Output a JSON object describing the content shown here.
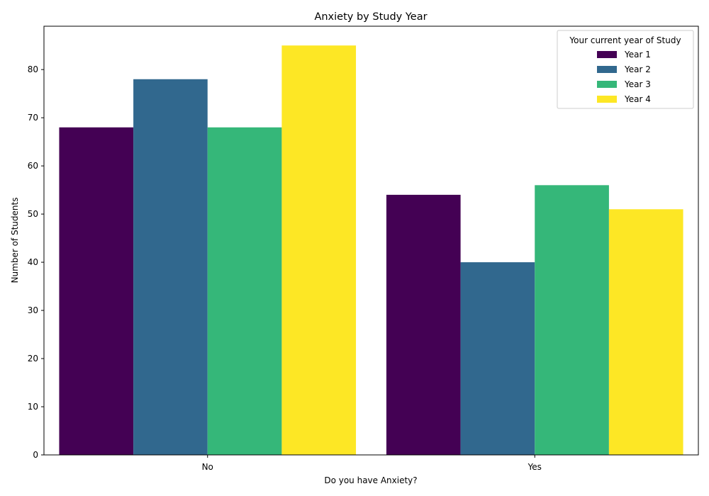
{
  "chart_data": {
    "type": "bar",
    "title": "Anxiety by Study Year",
    "xlabel": "Do you have Anxiety?",
    "ylabel": "Number of Students",
    "categories": [
      "No",
      "Yes"
    ],
    "ylim": [
      0,
      89
    ],
    "yticks": [
      0,
      10,
      20,
      30,
      40,
      50,
      60,
      70,
      80
    ],
    "grid": false,
    "legend": {
      "title": "Your current year of Study",
      "placement": "top-right"
    },
    "series": [
      {
        "name": "Year 1",
        "color": "#440154",
        "values": [
          68,
          54
        ]
      },
      {
        "name": "Year 2",
        "color": "#31688e",
        "values": [
          78,
          40
        ]
      },
      {
        "name": "Year 3",
        "color": "#35b779",
        "values": [
          68,
          56
        ]
      },
      {
        "name": "Year 4",
        "color": "#fde725",
        "values": [
          85,
          51
        ]
      }
    ]
  }
}
